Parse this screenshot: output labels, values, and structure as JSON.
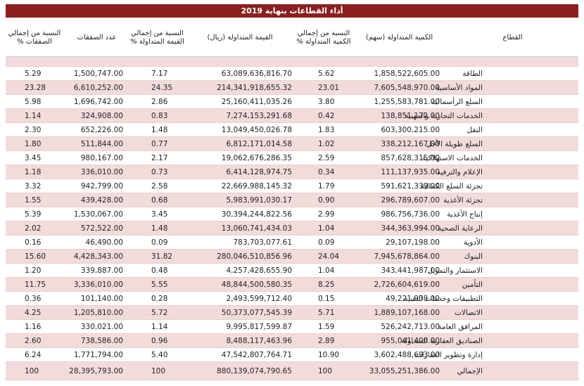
{
  "title": "أداء القطاعات بنهاية 2019",
  "table": {
    "header": [
      "القطاع",
      "الكمية المتداولة (سهم)",
      "النسبة من إجمالي الكمية المتداولة %",
      "القيمة المتداولة (ريال)",
      "النسبة من إجمالي القيمة المتداولة %",
      "عدد الصفقات",
      "النسبة من إجمالي الصفقات %"
    ],
    "rows": [
      [
        "الطاقة",
        "1,858,522,605.00",
        "5.62",
        "63,089,636,816.70",
        "7.17",
        "1,500,747.00",
        "5.29"
      ],
      [
        "المواد الأساسية",
        "7,605,548,970.00",
        "23.01",
        "214,341,918,655.32",
        "24.35",
        "6,610,252.00",
        "23.28"
      ],
      [
        "السلع الرأسمالية",
        "1,255,583,781.00",
        "3.80",
        "25,160,411,035.26",
        "2.86",
        "1,696,742.00",
        "5.98"
      ],
      [
        "الخدمات التجارية والمهنية",
        "138,851,172.00",
        "0.42",
        "7,274,153,291.68",
        "0.83",
        "324,908.00",
        "1.14"
      ],
      [
        "النقل",
        "603,300,215.00",
        "1.83",
        "13,049,450,026.78",
        "1.48",
        "652,226.00",
        "2.30"
      ],
      [
        "السلع طويلة الأجل",
        "338,212,167.00",
        "1.02",
        "6,812,171,014.58",
        "0.77",
        "511,844.00",
        "1.80"
      ],
      [
        "الخدمات الاستهلاكية",
        "857,628,315.00",
        "2.59",
        "19,062,676,286.35",
        "2.17",
        "980,167.00",
        "3.45"
      ],
      [
        "الإعلام والترفيه",
        "111,137,935.00",
        "0.34",
        "6,414,128,974.75",
        "0.73",
        "336,010.00",
        "1.18"
      ],
      [
        "تجزئة السلع الكمالية",
        "591,621,339.00",
        "1.79",
        "22,669,988,145.32",
        "2.58",
        "942,799.00",
        "3.32"
      ],
      [
        "تجزئة الأغذية",
        "296,789,607.00",
        "0.90",
        "5,983,991,030.17",
        "0.68",
        "439,428.00",
        "1.55"
      ],
      [
        "إنتاج الأغذية",
        "986,756,736.00",
        "2.99",
        "30,394,244,822.56",
        "3.45",
        "1,530,067.00",
        "5.39"
      ],
      [
        "الرعاية الصحية",
        "344,363,994.00",
        "1.04",
        "13,060,741,434.03",
        "1.48",
        "572,522.00",
        "2.02"
      ],
      [
        "الأدوية",
        "29,107,198.00",
        "0.09",
        "783,703,077.61",
        "0.09",
        "46,490.00",
        "0.16"
      ],
      [
        "البنوك",
        "7,945,678,864.00",
        "24.04",
        "280,046,510,856.96",
        "31.82",
        "4,428,343.00",
        "15.60"
      ],
      [
        "الاستثمار والتمويل",
        "343,441,987.00",
        "1.04",
        "4,257,428,655.90",
        "0.48",
        "339,887.00",
        "1.20"
      ],
      [
        "التأمين",
        "2,726,604,619.00",
        "8.25",
        "48,844,500,580.35",
        "5.55",
        "3,336,010.00",
        "11.75"
      ],
      [
        "التطبيقات وخدمات التقنية",
        "49,221,908.00",
        "0.15",
        "2,493,599,712.40",
        "0.28",
        "101,140.00",
        "0.36"
      ],
      [
        "الاتصالات",
        "1,889,107,168.00",
        "5.71",
        "50,373,077,545.39",
        "5.72",
        "1,205,810.00",
        "4.25"
      ],
      [
        "المرافق العامة",
        "526,242,713.00",
        "1.59",
        "9,995,817,599.87",
        "1.14",
        "330,021.00",
        "1.16"
      ],
      [
        "الصناديق العقارية المتداولة",
        "955,041,400.00",
        "2.89",
        "8,488,117,463.96",
        "0.96",
        "738,586.00",
        "2.60"
      ],
      [
        "إدارة وتطوير العقارات",
        "3,602,488,693.00",
        "10.90",
        "47,542,807,764.71",
        "5.40",
        "1,771,794.00",
        "6.24"
      ]
    ],
    "total": [
      "الإجمالي",
      "33,055,251,386.00",
      "100",
      "880,139,074,790.65",
      "100",
      "28,395,793.00",
      "100"
    ]
  }
}
